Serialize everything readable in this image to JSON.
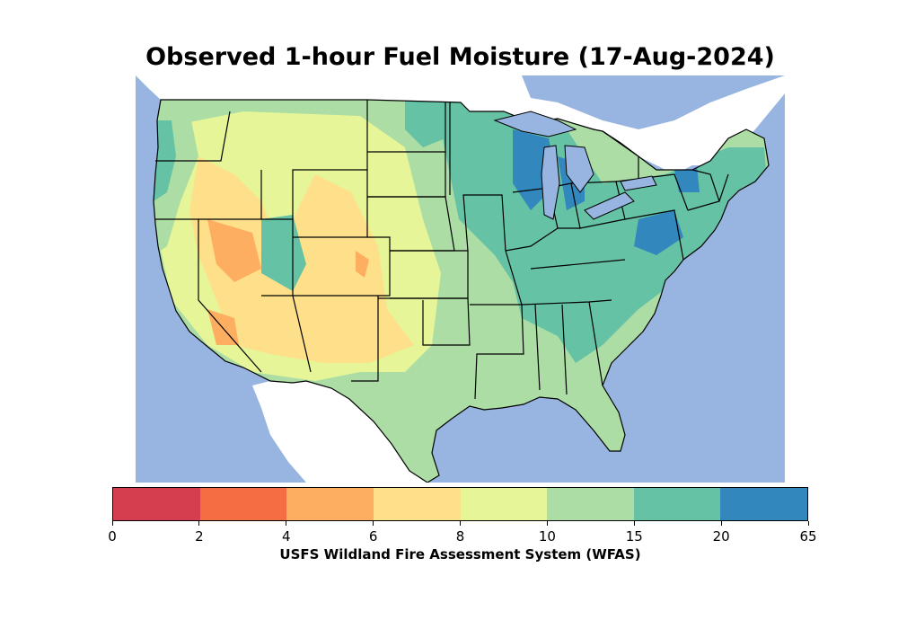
{
  "title": "Observed 1-hour Fuel Moisture (17-Aug-2024)",
  "source_label": "USFS Wildland Fire Assessment System (WFAS)",
  "colorbar": {
    "ticks": [
      "0",
      "2",
      "4",
      "6",
      "8",
      "10",
      "15",
      "20",
      "65"
    ],
    "colors": [
      "#d53e4f",
      "#f46d43",
      "#fdae61",
      "#fee08b",
      "#e6f598",
      "#abdda4",
      "#66c2a5",
      "#3288bd"
    ]
  },
  "map_colors": {
    "water": "#97b5e0",
    "land_bg": "#ffffff",
    "boundary": "#000000"
  }
}
